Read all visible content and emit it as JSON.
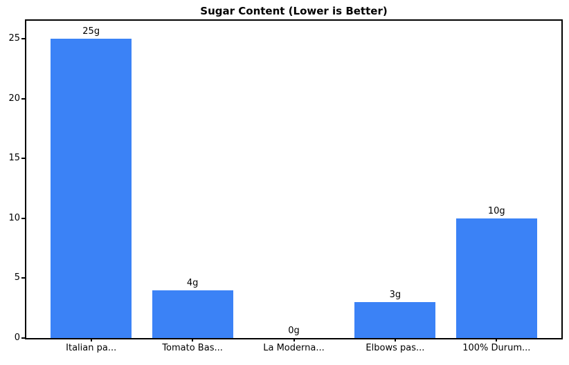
{
  "chart_data": {
    "type": "bar",
    "title": "Sugar Content (Lower is Better)",
    "categories": [
      "Italian pa...",
      "Tomato Bas...",
      "La Moderna...",
      "Elbows pas...",
      "100% Durum..."
    ],
    "values": [
      25,
      4,
      0,
      3,
      10
    ],
    "bar_labels": [
      "25g",
      "4g",
      "0g",
      "3g",
      "10g"
    ],
    "xlabel": "",
    "ylabel": "",
    "yticks": [
      0,
      5,
      10,
      15,
      20,
      25
    ],
    "ylim": [
      0,
      26.5
    ],
    "bar_color": "#3b82f6",
    "axis_color": "#000000",
    "text_color": "#000000",
    "background_color": "#ffffff",
    "grid": false,
    "legend_position": "none",
    "bar_width_fraction": 0.8
  }
}
